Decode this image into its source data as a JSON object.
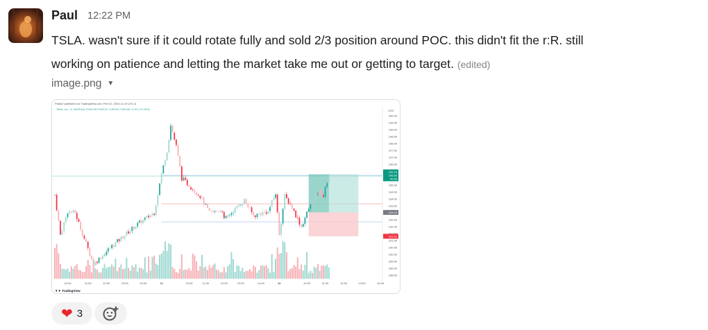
{
  "message": {
    "author": "Paul",
    "timestamp": "12:22 PM",
    "text_line1": "TSLA.  wasn't sure if it could rotate fully and sold 2/3 position around POC. this didn't fit the r:R.  still",
    "text_line2": "working on patience and letting the market take me out or getting to target.",
    "edited_label": "(edited)",
    "attachment_name": "image.png"
  },
  "reactions": [
    {
      "emoji": "heart",
      "glyph": "❤",
      "count": "3"
    }
  ],
  "add_reaction_icon": "emoji-add-icon",
  "chart_data": {
    "type": "candlestick",
    "published": "Pablo0 published on TradingView.com, Feb 22, 2024 11:19 UTC-6",
    "symbol_line": "Tesla, Inc., 5, NASDAQ  O195.53 H195.67 L195.50 C195.66 +0.32 (+0.16%)",
    "currency": "USD",
    "y_ticks": [
      "200.00",
      "199.50",
      "199.00",
      "198.50",
      "198.00",
      "197.50",
      "197.00",
      "196.50",
      "195.00",
      "194.50",
      "194.00",
      "193.50",
      "192.50",
      "192.00",
      "191.50",
      "191.00",
      "190.50",
      "190.00",
      "189.50",
      "189.00",
      "188.50"
    ],
    "ylim": [
      188.5,
      200
    ],
    "x_ticks": [
      {
        "label": "10:00",
        "bar": 7
      },
      {
        "label": "11:00",
        "bar": 18
      },
      {
        "label": "12:00",
        "bar": 28
      },
      {
        "label": "13:00",
        "bar": 38
      },
      {
        "label": "14:00",
        "bar": 48
      },
      {
        "label": "21",
        "bar": 58,
        "bold": true
      },
      {
        "label": "10:00",
        "bar": 73
      },
      {
        "label": "11:00",
        "bar": 82
      },
      {
        "label": "12:00",
        "bar": 92
      },
      {
        "label": "13:00",
        "bar": 101
      },
      {
        "label": "14:00",
        "bar": 112
      },
      {
        "label": "22",
        "bar": 122,
        "bold": true
      },
      {
        "label": "10:00",
        "bar": 137
      },
      {
        "label": "11:00",
        "bar": 147
      },
      {
        "label": "12:00",
        "bar": 157
      },
      {
        "label": "13:00",
        "bar": 167
      },
      {
        "label": "14:00",
        "bar": 177
      }
    ],
    "price_path": [
      [
        0,
        194.3
      ],
      [
        3,
        191.4
      ],
      [
        7,
        193.1
      ],
      [
        11,
        193.0
      ],
      [
        21,
        189.3
      ],
      [
        31,
        190.6
      ],
      [
        45,
        192.2
      ],
      [
        54,
        193.0
      ],
      [
        58,
        195.8
      ],
      [
        61,
        197.5
      ],
      [
        63,
        199.3
      ],
      [
        66,
        197.8
      ],
      [
        69,
        195.5
      ],
      [
        79,
        194.2
      ],
      [
        84,
        193.0
      ],
      [
        91,
        193.2
      ],
      [
        92,
        192.5
      ],
      [
        103,
        193.9
      ],
      [
        108,
        192.8
      ],
      [
        116,
        193.1
      ],
      [
        120,
        194.4
      ],
      [
        122,
        191.5
      ],
      [
        125,
        194.2
      ],
      [
        129,
        193.4
      ],
      [
        134,
        192.0
      ],
      [
        138,
        193.3
      ],
      [
        144,
        194.6
      ],
      [
        146,
        194.2
      ],
      [
        149,
        195.8
      ]
    ],
    "levels": {
      "high_line": 195.7,
      "poc": 193.65,
      "low_line": 192.35
    },
    "position": {
      "entry": 193.03,
      "target": 195.78,
      "stop": 191.31,
      "start_bar": 138,
      "end_bar": 165
    },
    "price_labels": {
      "current": "195.78",
      "current2": "195.66",
      "countdown": "00:58",
      "entry": "193.03",
      "stop": "191.31"
    },
    "colors": {
      "up": "#26a69a",
      "down": "#f23645",
      "up_pale": "#9fd9d1",
      "down_pale": "#f7b1b6"
    },
    "brand": "TradingView"
  }
}
